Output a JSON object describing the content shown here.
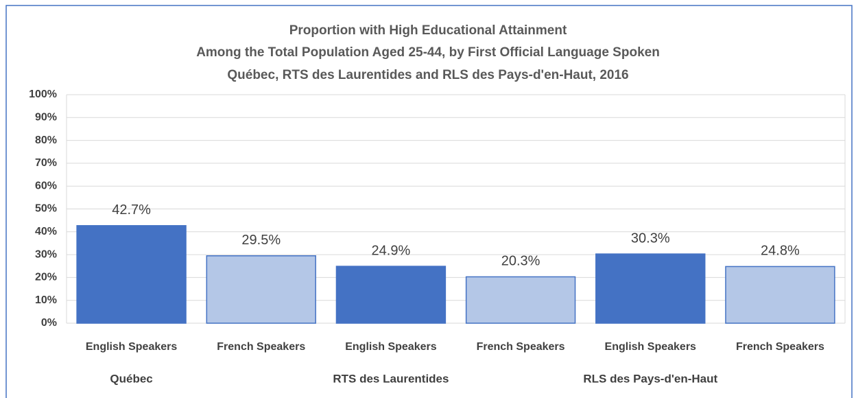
{
  "chart_data": {
    "type": "bar",
    "title": [
      "Proportion with High Educational Attainment",
      "Among the Total Population Aged 25-44, by First Official Language Spoken",
      "Québec, RTS des Laurentides and RLS des Pays-d'en-Haut, 2016"
    ],
    "categories": [
      "English Speakers",
      "French Speakers",
      "English Speakers",
      "French Speakers",
      "English Speakers",
      "French Speakers"
    ],
    "groups": [
      "Québec",
      "RTS des Laurentides",
      "RLS des Pays-d'en-Haut"
    ],
    "values": [
      42.7,
      29.5,
      24.9,
      20.3,
      30.3,
      24.8
    ],
    "value_labels": [
      "42.7%",
      "29.5%",
      "24.9%",
      "20.3%",
      "30.3%",
      "24.8%"
    ],
    "colors": [
      "#4472c4",
      "#b4c7e7",
      "#4472c4",
      "#b4c7e7",
      "#4472c4",
      "#b4c7e7"
    ],
    "ylim": [
      0,
      100
    ],
    "yticks": [
      {
        "value": 0,
        "label": "0%"
      },
      {
        "value": 10,
        "label": "10%"
      },
      {
        "value": 20,
        "label": "20%"
      },
      {
        "value": 30,
        "label": "30%"
      },
      {
        "value": 40,
        "label": "40%"
      },
      {
        "value": 50,
        "label": "50%"
      },
      {
        "value": 60,
        "label": "60%"
      },
      {
        "value": 70,
        "label": "70%"
      },
      {
        "value": 80,
        "label": "80%"
      },
      {
        "value": 90,
        "label": "90%"
      },
      {
        "value": 100,
        "label": "100%"
      }
    ],
    "grid": true
  }
}
